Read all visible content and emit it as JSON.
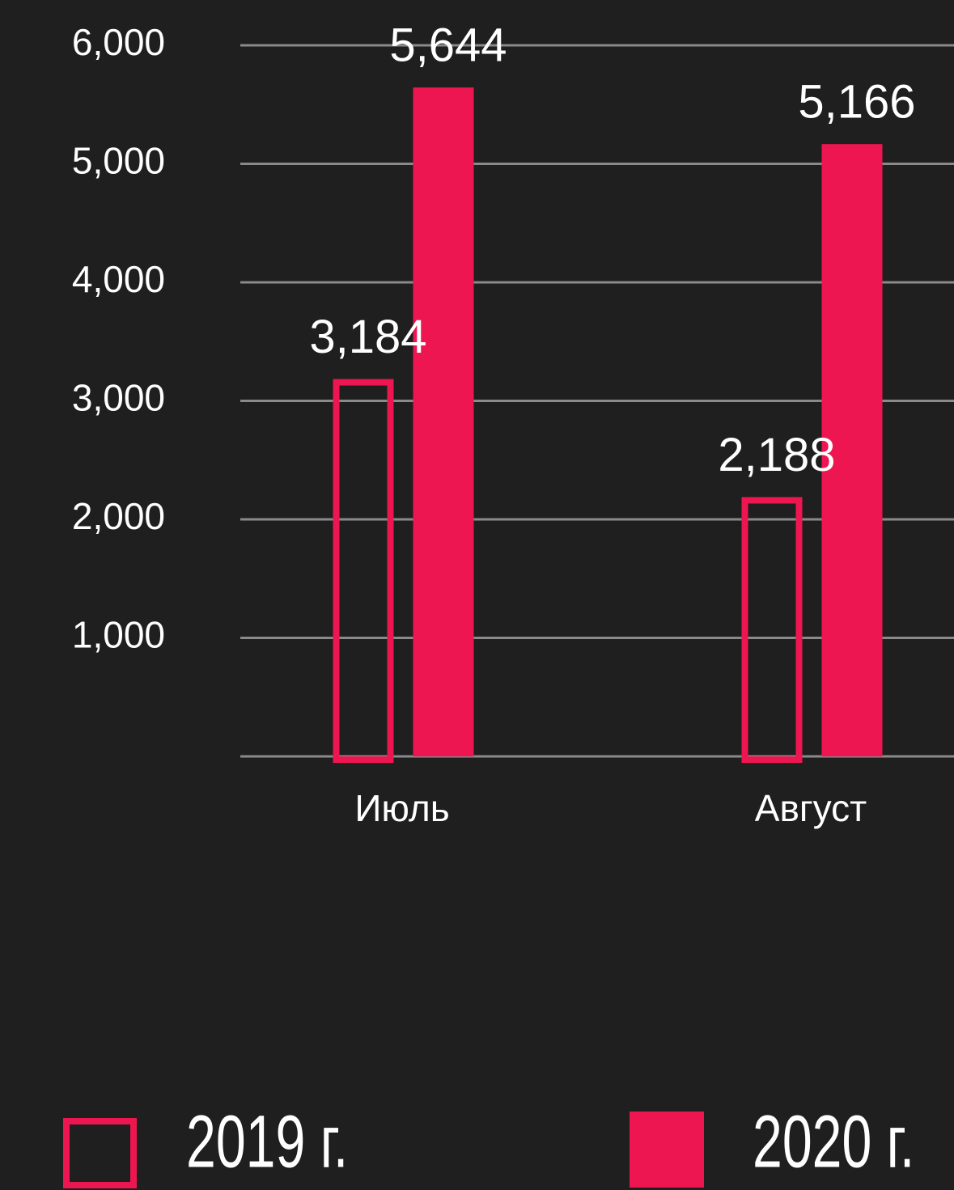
{
  "chart_data": {
    "type": "bar",
    "categories": [
      "Июль",
      "Август"
    ],
    "series": [
      {
        "name": "2019 г.",
        "color": "#ee1651",
        "style": "outline",
        "values": [
          3184,
          2188
        ],
        "value_labels": [
          "3,184",
          "2,188"
        ]
      },
      {
        "name": "2020 г.",
        "color": "#ee1651",
        "style": "filled",
        "values": [
          5644,
          5166
        ],
        "value_labels": [
          "5,644",
          "5,166"
        ]
      }
    ],
    "ylim": [
      0,
      6000
    ],
    "yticks": [
      {
        "value": 1000,
        "label": "1,000"
      },
      {
        "value": 2000,
        "label": "2,000"
      },
      {
        "value": 3000,
        "label": "3,000"
      },
      {
        "value": 4000,
        "label": "4,000"
      },
      {
        "value": 5000,
        "label": "5,000"
      },
      {
        "value": 6000,
        "label": "6,000"
      }
    ],
    "grid": true
  }
}
